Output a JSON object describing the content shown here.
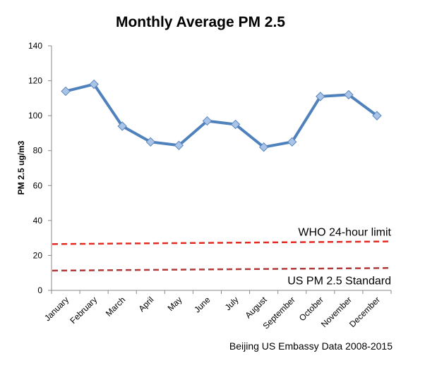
{
  "chart_data": {
    "type": "line",
    "title": "Monthly Average PM 2.5",
    "ylabel": "PM 2.5 ug/m3",
    "xlabel": "",
    "categories": [
      "January",
      "February",
      "March",
      "April",
      "May",
      "June",
      "July",
      "August",
      "September",
      "October",
      "November",
      "December"
    ],
    "values": [
      114,
      118,
      94,
      85,
      83,
      97,
      95,
      82,
      85,
      111,
      112,
      100
    ],
    "ylim": [
      0,
      140
    ],
    "yticks": [
      0,
      20,
      40,
      60,
      80,
      100,
      120,
      140
    ],
    "grid": false,
    "legend": "none",
    "series_color": "#4f81bd",
    "reference_lines": [
      {
        "label": "WHO 24-hour limit",
        "start": 26.5,
        "end": 28,
        "color": "#e32b22"
      },
      {
        "label": "US PM 2.5 Standard",
        "start": 11.3,
        "end": 12.8,
        "color": "#b03a3a"
      }
    ],
    "source": "Beijing US Embassy Data 2008-2015"
  }
}
